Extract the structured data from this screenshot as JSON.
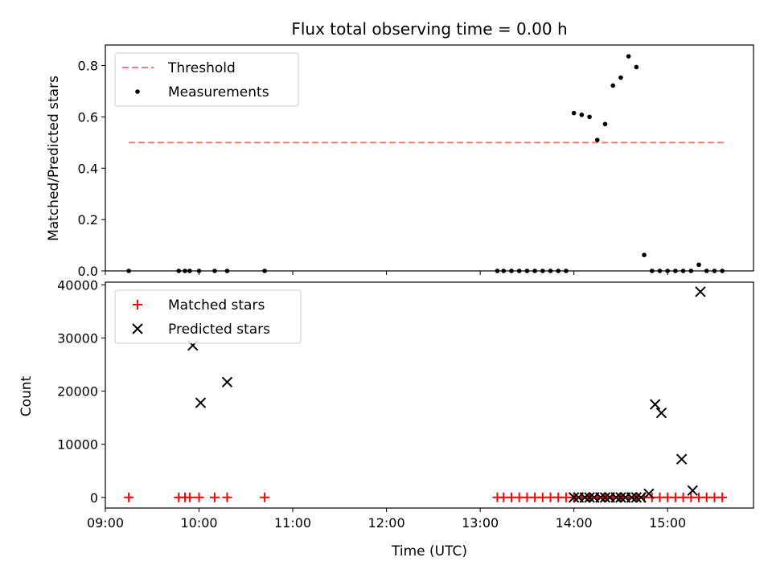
{
  "chart_data": [
    {
      "type": "scatter",
      "title": "Flux total observing time = 0.00 h",
      "xlabel": "",
      "ylabel": "Matched/Predicted stars",
      "xlim": [
        "09:00",
        "15:55"
      ],
      "ylim": [
        0,
        0.88
      ],
      "yticks": [
        "0.0",
        "0.2",
        "0.4",
        "0.6",
        "0.8"
      ],
      "legend_position": "top-left",
      "grid": false,
      "series": [
        {
          "name": "Threshold",
          "kind": "dashed-line",
          "color": "#ff7777",
          "x": [
            "09:15",
            "15:36"
          ],
          "y": [
            0.5,
            0.5
          ]
        },
        {
          "name": "Measurements",
          "kind": "dot",
          "color": "#000000",
          "x": [
            "09:15",
            "09:47",
            "09:51",
            "09:54",
            "10:00",
            "10:10",
            "10:18",
            "10:42",
            "13:11",
            "13:15",
            "13:20",
            "13:25",
            "13:30",
            "13:35",
            "13:40",
            "13:45",
            "13:50",
            "13:55",
            "14:00",
            "14:05",
            "14:10",
            "14:15",
            "14:20",
            "14:25",
            "14:30",
            "14:35",
            "14:40",
            "14:45",
            "14:50",
            "14:55",
            "15:00",
            "15:05",
            "15:10",
            "15:15",
            "15:20",
            "15:25",
            "15:30",
            "15:35"
          ],
          "y": [
            0,
            0,
            0,
            0,
            0,
            0,
            0,
            0,
            0,
            0,
            0,
            0,
            0,
            0,
            0,
            0,
            0,
            0,
            0.615,
            0.608,
            0.6,
            0.51,
            0.572,
            0.722,
            0.753,
            0.836,
            0.794,
            0.062,
            0,
            0,
            0,
            0,
            0,
            0,
            0.024,
            0,
            0,
            0
          ]
        }
      ]
    },
    {
      "type": "scatter",
      "title": "",
      "xlabel": "Time (UTC)",
      "ylabel": "Count",
      "xlim": [
        "09:00",
        "15:55"
      ],
      "ylim": [
        -2000,
        40500
      ],
      "xticks": [
        "09:00",
        "10:00",
        "11:00",
        "12:00",
        "13:00",
        "14:00",
        "15:00"
      ],
      "yticks": [
        "0",
        "10000",
        "20000",
        "30000",
        "40000"
      ],
      "legend_position": "top-left",
      "grid": false,
      "series": [
        {
          "name": "Matched stars",
          "kind": "plus",
          "color": "#ff0000",
          "x": [
            "09:15",
            "09:47",
            "09:51",
            "09:54",
            "10:00",
            "10:10",
            "10:18",
            "10:42",
            "13:11",
            "13:15",
            "13:20",
            "13:25",
            "13:30",
            "13:35",
            "13:40",
            "13:45",
            "13:50",
            "13:55",
            "14:00",
            "14:05",
            "14:10",
            "14:15",
            "14:20",
            "14:25",
            "14:30",
            "14:35",
            "14:40",
            "14:45",
            "14:50",
            "14:55",
            "15:00",
            "15:05",
            "15:10",
            "15:15",
            "15:20",
            "15:25",
            "15:30",
            "15:35"
          ],
          "y": [
            0,
            0,
            0,
            0,
            0,
            0,
            0,
            0,
            0,
            0,
            0,
            0,
            0,
            0,
            0,
            0,
            0,
            0,
            0,
            0,
            0,
            0,
            0,
            0,
            0,
            0,
            0,
            0,
            0,
            0,
            0,
            0,
            0,
            0,
            0,
            0,
            0,
            0
          ]
        },
        {
          "name": "Predicted stars",
          "kind": "x",
          "color": "#000000",
          "x": [
            "09:56",
            "10:01",
            "10:18",
            "14:00",
            "14:03",
            "14:07",
            "14:10",
            "14:13",
            "14:17",
            "14:20",
            "14:23",
            "14:27",
            "14:30",
            "14:33",
            "14:37",
            "14:40",
            "14:43",
            "14:48",
            "14:52",
            "14:56",
            "15:09",
            "15:16",
            "15:21"
          ],
          "y": [
            28600,
            17800,
            21700,
            0,
            0,
            0,
            0,
            0,
            0,
            0,
            0,
            0,
            0,
            0,
            0,
            0,
            0,
            700,
            17500,
            15900,
            7200,
            1300,
            38700
          ]
        }
      ]
    }
  ]
}
